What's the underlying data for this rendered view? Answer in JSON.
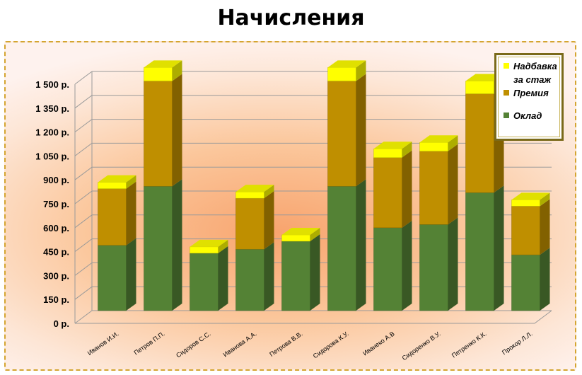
{
  "colors": {
    "oklad": "#548235",
    "premiya": "#bf8f00",
    "nadbavka": "#ffff00"
  },
  "chart_data": {
    "type": "bar",
    "stacked": true,
    "three_d": true,
    "title": "Начисления",
    "categories": [
      "Иванов И.И.",
      "Петров П.П.",
      "Сидоров С.С.",
      "Иванова А.А.",
      "Петрова В.В.",
      "Сидорова К.У.",
      "Иванеко А.В",
      "Сидоренко В.У.",
      "Петренко К.К.",
      "Прокор Л.Л."
    ],
    "series": [
      {
        "name": "Оклад",
        "values": [
          410,
          780,
          360,
          385,
          435,
          780,
          520,
          540,
          740,
          350
        ]
      },
      {
        "name": "Премия",
        "values": [
          355,
          660,
          0,
          320,
          0,
          660,
          440,
          460,
          620,
          305
        ]
      },
      {
        "name": "Надбавка за стаж",
        "values": [
          40,
          85,
          40,
          40,
          40,
          85,
          55,
          55,
          80,
          40
        ]
      }
    ],
    "ylim": [
      0,
      1500
    ],
    "yticks": [
      "0 р.",
      "150 р.",
      "300 р.",
      "450 р.",
      "600 р.",
      "750 р.",
      "900 р.",
      "1 050 р.",
      "1 200 р.",
      "1 350 р.",
      "1 500 р."
    ],
    "legend_position": "top-right",
    "grid": true
  }
}
